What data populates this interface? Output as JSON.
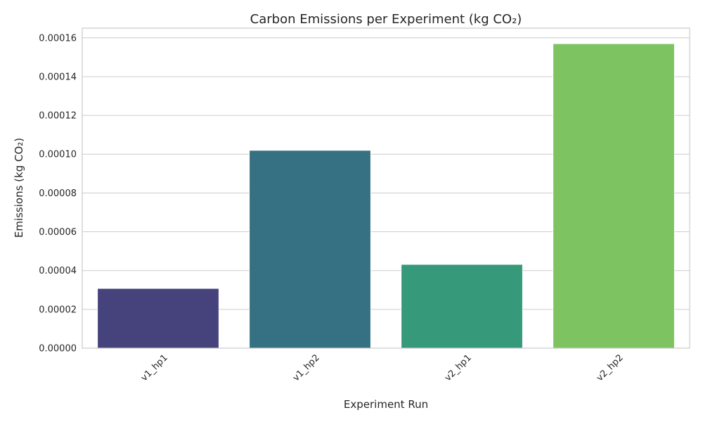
{
  "chart_data": {
    "type": "bar",
    "title": "Carbon Emissions per Experiment (kg CO₂)",
    "xlabel": "Experiment Run",
    "ylabel": "Emissions (kg CO₂)",
    "categories": [
      "v1_hp1",
      "v1_hp2",
      "v2_hp1",
      "v2_hp2"
    ],
    "values": [
      3.08e-05,
      0.000102,
      4.32e-05,
      0.000157
    ],
    "colors": [
      "#46427c",
      "#357182",
      "#36997a",
      "#7ec362"
    ],
    "ylim": [
      0,
      0.000165
    ],
    "yticks": [
      0,
      2e-05,
      4e-05,
      6e-05,
      8e-05,
      0.0001,
      0.00012,
      0.00014,
      0.00016
    ],
    "ytick_labels": [
      "0.00000",
      "0.00002",
      "0.00004",
      "0.00006",
      "0.00008",
      "0.00010",
      "0.00012",
      "0.00014",
      "0.00016"
    ],
    "grid": true,
    "style": "whitegrid",
    "xtick_rotation_deg": 45
  }
}
